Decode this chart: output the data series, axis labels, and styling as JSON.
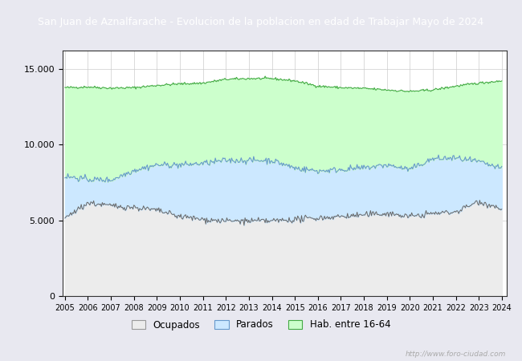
{
  "title": "San Juan de Aznalfarache - Evolucion de la poblacion en edad de Trabajar Mayo de 2024",
  "title_bg": "#3366cc",
  "title_color": "#ffffff",
  "ylim": [
    0,
    16200
  ],
  "yticks": [
    0,
    5000,
    10000,
    15000
  ],
  "ytick_labels": [
    "0",
    "5.000",
    "10.000",
    "15.000"
  ],
  "years": [
    2005,
    2006,
    2007,
    2008,
    2009,
    2010,
    2011,
    2012,
    2013,
    2014,
    2015,
    2016,
    2017,
    2018,
    2019,
    2020,
    2021,
    2022,
    2023,
    2024
  ],
  "hab_16_64": [
    13750,
    13800,
    13720,
    13750,
    13900,
    14000,
    14050,
    14300,
    14350,
    14350,
    14200,
    13850,
    13750,
    13700,
    13600,
    13500,
    13600,
    13850,
    14050,
    14200
  ],
  "parados_top": [
    7900,
    7700,
    7650,
    8300,
    8650,
    8650,
    8750,
    8950,
    8950,
    8950,
    8450,
    8250,
    8350,
    8450,
    8650,
    8350,
    9050,
    9100,
    8850,
    8400
  ],
  "ocupados_top": [
    5150,
    6150,
    5950,
    5850,
    5650,
    5250,
    5050,
    4950,
    4950,
    4950,
    5050,
    5150,
    5250,
    5350,
    5450,
    5250,
    5450,
    5550,
    6250,
    5750
  ],
  "color_hab": "#ccffcc",
  "color_parados": "#cce8ff",
  "color_ocupados": "#ececec",
  "color_line_hab": "#44aa44",
  "color_line_parados": "#6699cc",
  "color_line_ocupados": "#666666",
  "watermark": "http://www.foro-ciudad.com",
  "legend_labels": [
    "Ocupados",
    "Parados",
    "Hab. entre 16-64"
  ],
  "figure_bg": "#e8e8f0",
  "plot_bg": "#ffffff",
  "noise_seed": 42,
  "noise_hab": 40,
  "noise_par": 100,
  "noise_ocu": 100,
  "points_per_year": 24
}
